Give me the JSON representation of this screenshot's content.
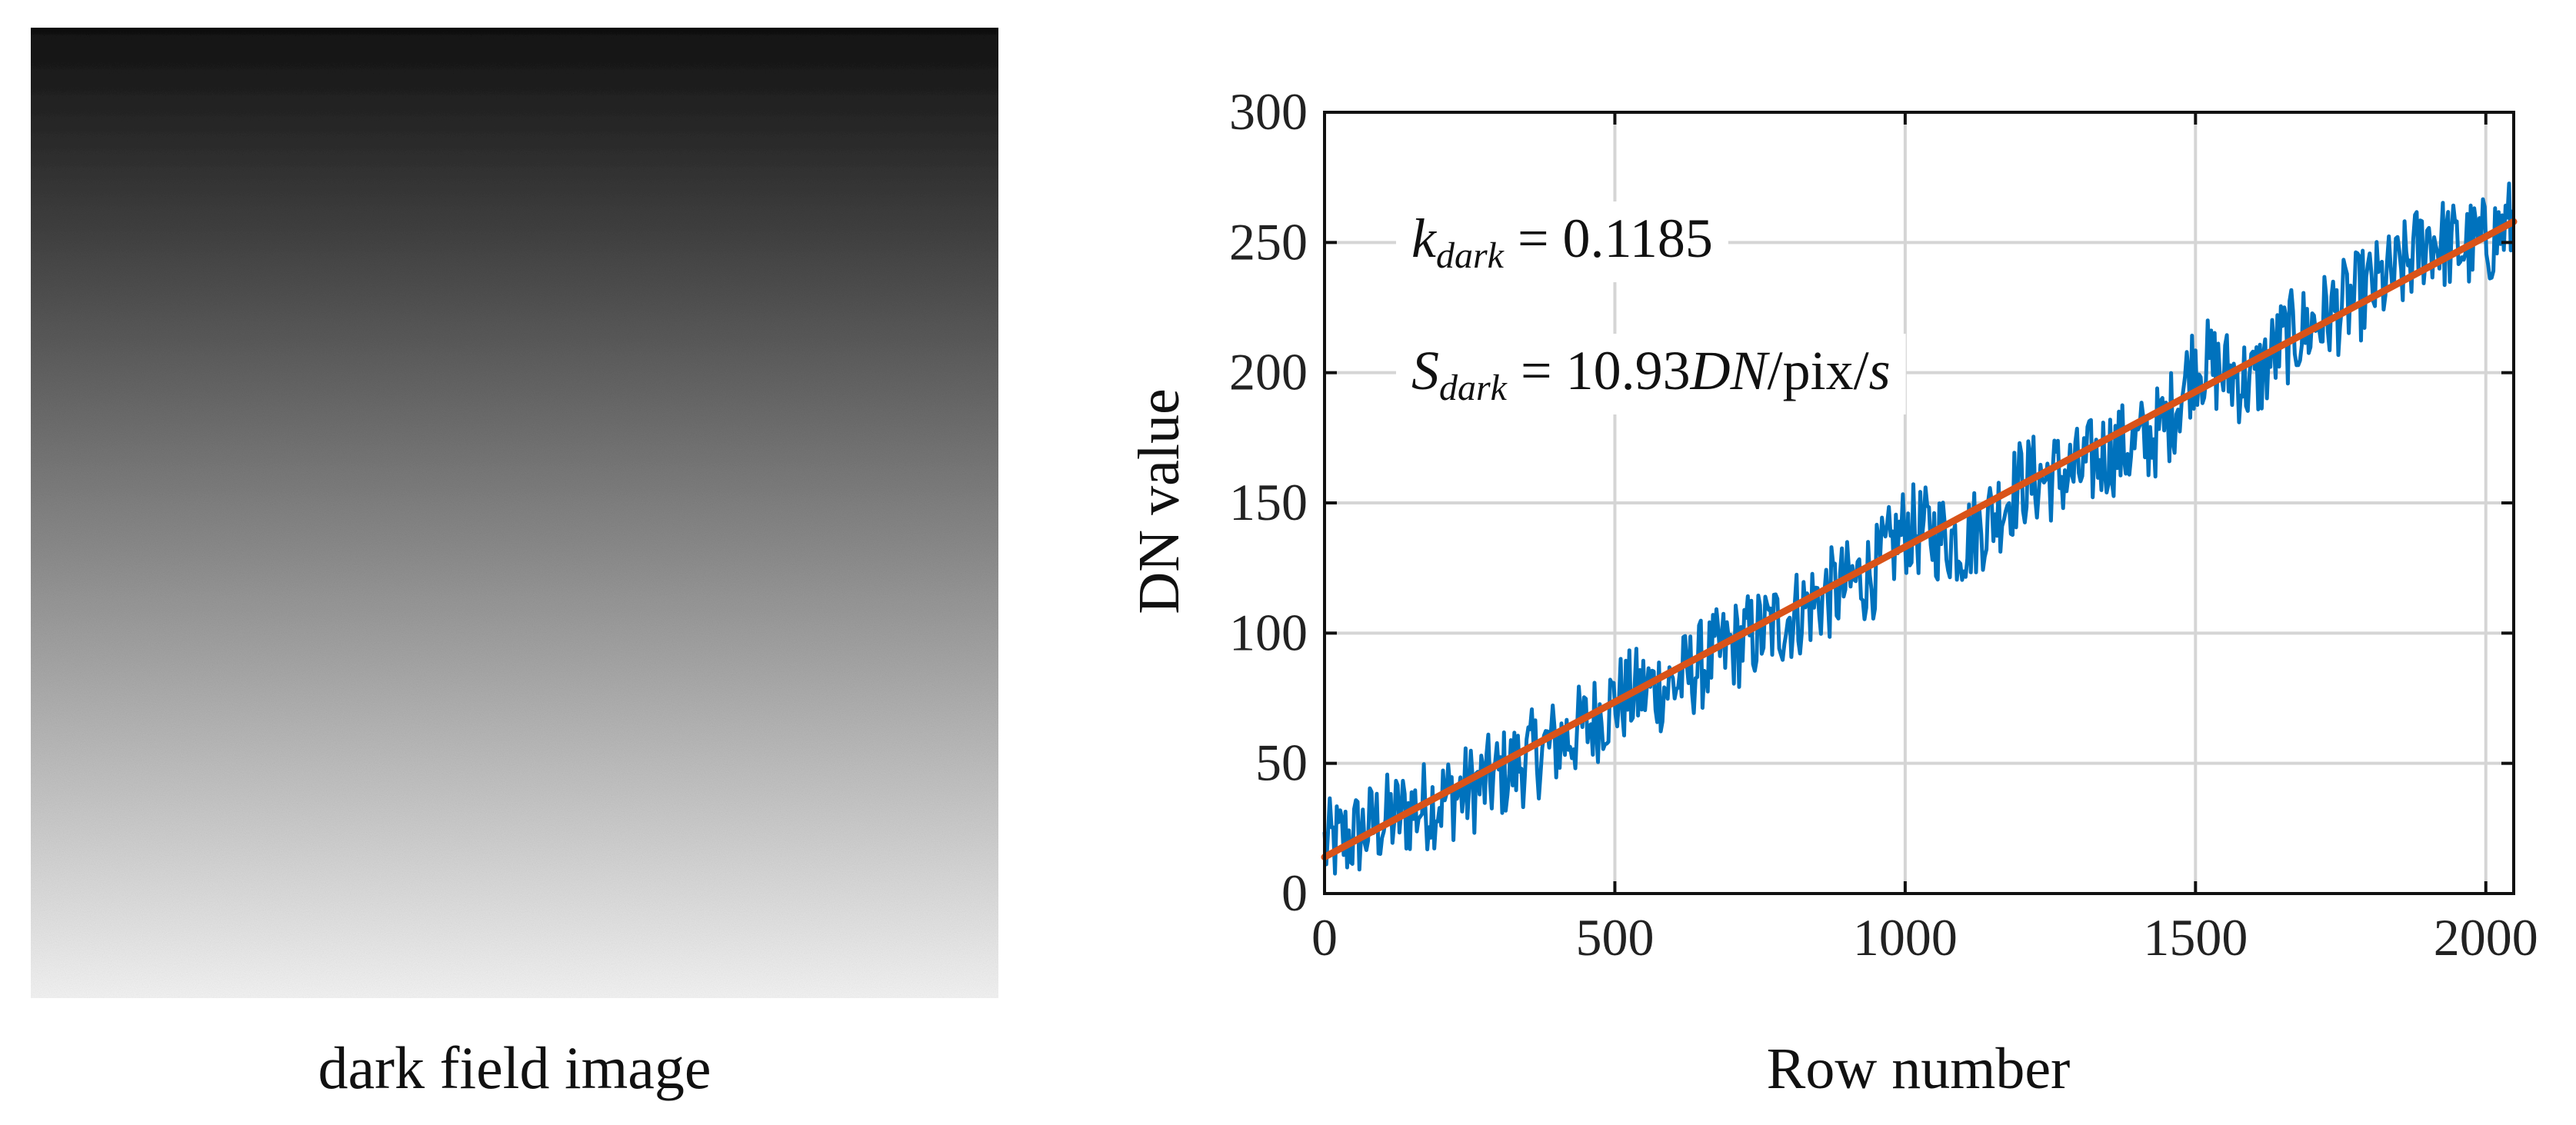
{
  "left_panel": {
    "caption": "dark field image",
    "image_description_gradient": [
      "#111111",
      "#f4f4f4"
    ]
  },
  "chart_data": {
    "type": "line",
    "xlabel": "Row number",
    "ylabel": "DN value",
    "xlim": [
      0,
      2048
    ],
    "ylim": [
      0,
      300
    ],
    "xticks": [
      0,
      500,
      1000,
      1500,
      2000
    ],
    "yticks": [
      0,
      50,
      100,
      150,
      200,
      250,
      300
    ],
    "grid": true,
    "annotations": [
      {
        "id": "k",
        "symbol": "k",
        "subscript": "dark",
        "equals": "= 0.1185"
      },
      {
        "id": "s",
        "symbol": "S",
        "subscript": "dark",
        "equals": "= 10.93",
        "unit_italic": "DN",
        "unit_rest": "/pix/",
        "unit_tail_italic": "s"
      }
    ],
    "series": [
      {
        "role": "measured",
        "color": "#0072BD",
        "x": [
          0,
          50,
          100,
          150,
          200,
          250,
          300,
          350,
          400,
          450,
          500,
          550,
          600,
          650,
          700,
          750,
          800,
          850,
          900,
          950,
          1000,
          1050,
          1100,
          1150,
          1200,
          1250,
          1300,
          1350,
          1400,
          1450,
          1500,
          1550,
          1600,
          1650,
          1700,
          1750,
          1800,
          1850,
          1900,
          1950,
          2000,
          2048
        ],
        "y": [
          18,
          22,
          28,
          32,
          36,
          40,
          45,
          52,
          58,
          64,
          74,
          78,
          80,
          88,
          95,
          100,
          106,
          113,
          118,
          124,
          140,
          138,
          135,
          145,
          158,
          160,
          162,
          170,
          172,
          180,
          205,
          200,
          196,
          212,
          218,
          225,
          232,
          238,
          252,
          248,
          250,
          258
        ]
      },
      {
        "role": "linear fit",
        "color": "#D95319",
        "x": [
          0,
          2048
        ],
        "y": [
          14,
          258
        ]
      }
    ],
    "noise_band": 18
  }
}
